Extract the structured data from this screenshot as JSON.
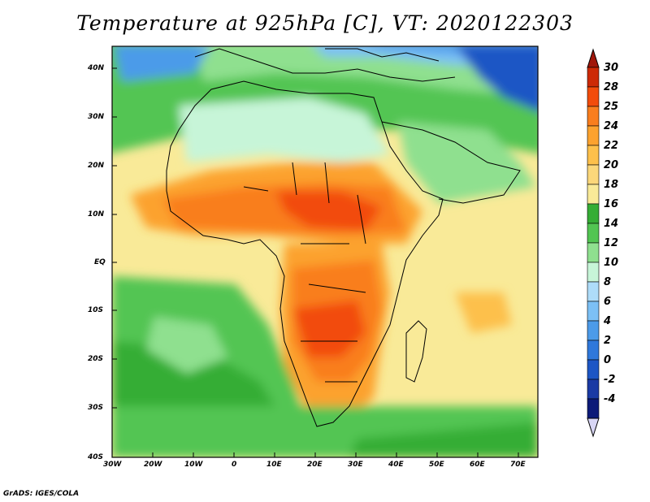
{
  "title": "Temperature at 925hPa [C], VT: 2020122303",
  "credit": "GrADS: IGES/COLA",
  "lat_labels": [
    "40N",
    "30N",
    "20N",
    "10N",
    "EQ",
    "10S",
    "20S",
    "30S",
    "40S"
  ],
  "lon_labels": [
    "30W",
    "20W",
    "10W",
    "0",
    "10E",
    "20E",
    "30E",
    "40E",
    "50E",
    "60E",
    "70E"
  ],
  "colorbar": {
    "labels": [
      "30",
      "28",
      "25",
      "24",
      "22",
      "20",
      "18",
      "16",
      "14",
      "12",
      "10",
      "8",
      "6",
      "4",
      "2",
      "0",
      "-2",
      "-4"
    ],
    "colors": [
      "#cd2a06",
      "#f24c0b",
      "#f97e1e",
      "#fca22f",
      "#fdc04b",
      "#fbd77a",
      "#f9ea98",
      "#35ad35",
      "#52c552",
      "#8fe08f",
      "#c7f5d8",
      "#aedcf9",
      "#7cc0f5",
      "#4c9be9",
      "#2f78db",
      "#1d56c5",
      "#1a3aa4",
      "#0c1a78"
    ],
    "over_color": "#a0170b",
    "under_color": "#d8d6f5"
  },
  "colors": {
    "ocean_mid": "#f9ea98",
    "sahara": "#c7f5d8",
    "hot": "#f24c0b"
  }
}
